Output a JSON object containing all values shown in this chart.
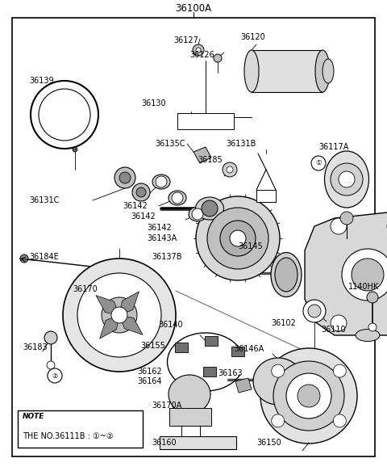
{
  "title": "36100A",
  "bg": "#ffffff",
  "lc": "#000000",
  "tc": "#000000",
  "fig_w": 4.8,
  "fig_h": 5.83,
  "dpi": 100,
  "xlim": [
    0,
    480
  ],
  "ylim": [
    0,
    583
  ]
}
